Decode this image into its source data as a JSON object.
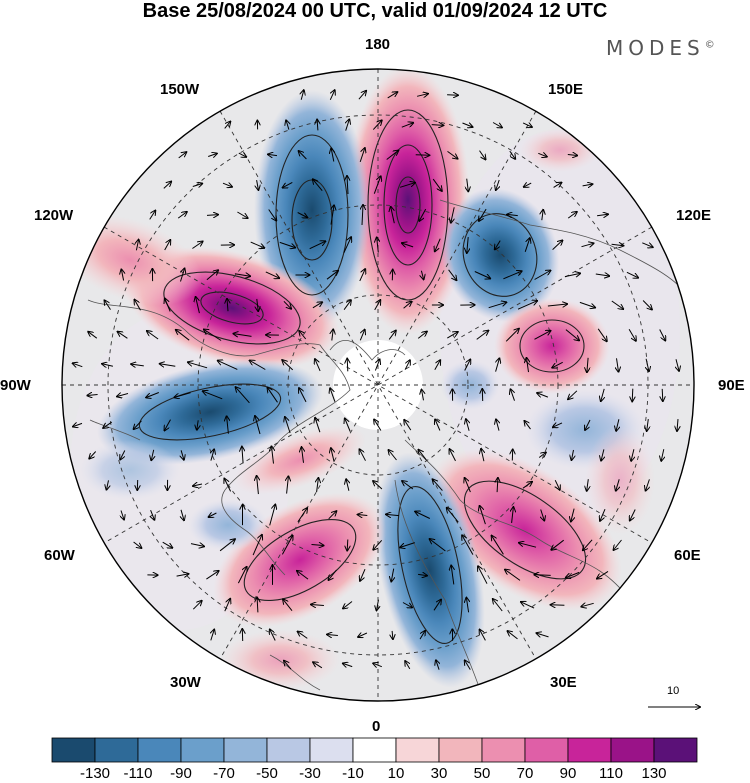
{
  "title": "Base 25/08/2024 00 UTC, valid 01/09/2024 12 UTC",
  "brand": "MODES",
  "brand_mark": "©",
  "longitude_labels": {
    "top": "180",
    "bottom": "0",
    "left": "90W",
    "right": "90E",
    "upper_left_1": "150W",
    "upper_left_2": "120W",
    "upper_right_1": "150E",
    "upper_right_2": "120E",
    "lower_left_1": "60W",
    "lower_left_2": "30W",
    "lower_right_1": "60E",
    "lower_right_2": "30E"
  },
  "vector_scale_label": "10",
  "colorbar": {
    "ticks": [
      "-130",
      "-110",
      "-90",
      "-70",
      "-50",
      "-30",
      "-10",
      "10",
      "30",
      "50",
      "70",
      "90",
      "110",
      "130"
    ],
    "colors": [
      "#1a4a6e",
      "#2e6a98",
      "#4a87ba",
      "#6b9fcb",
      "#93b5d9",
      "#b9c8e4",
      "#dcdfef",
      "#ffffff",
      "#f7d6d8",
      "#f2b6bc",
      "#ec8fb0",
      "#df5fa7",
      "#c8249a",
      "#9a1388",
      "#5b1178"
    ]
  },
  "anomaly_centers": [
    {
      "kind": "negative",
      "near": "150W"
    },
    {
      "kind": "positive",
      "near": "180"
    },
    {
      "kind": "negative",
      "near": "150E"
    },
    {
      "kind": "positive",
      "near": "120W"
    },
    {
      "kind": "positive",
      "near": "120E"
    },
    {
      "kind": "negative",
      "near": "90W"
    },
    {
      "kind": "positive",
      "near": "60E"
    },
    {
      "kind": "negative",
      "near": "30E"
    },
    {
      "kind": "positive",
      "near": "30W"
    }
  ]
}
